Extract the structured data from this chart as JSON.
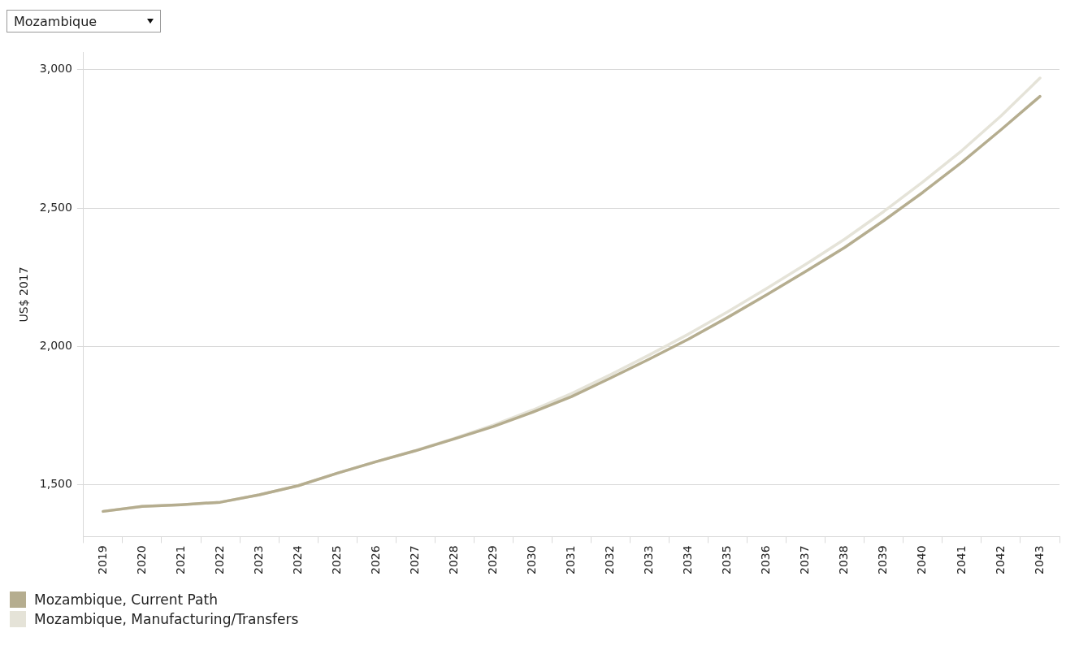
{
  "chart_data": {
    "type": "line",
    "ylabel": "US$ 2017",
    "annotations": [
      "Mozambique"
    ],
    "categories": [
      "2019",
      "2020",
      "2021",
      "2022",
      "2023",
      "2024",
      "2025",
      "2026",
      "2027",
      "2028",
      "2029",
      "2030",
      "2031",
      "2032",
      "2033",
      "2034",
      "2035",
      "2036",
      "2037",
      "2038",
      "2039",
      "2040",
      "2041",
      "2042",
      "2043"
    ],
    "series": [
      {
        "name": "Mozambique, Current Path",
        "color": "#b5ad8f",
        "values": [
          1404,
          1422,
          1428,
          1437,
          1464,
          1497,
          1542,
          1584,
          1623,
          1666,
          1711,
          1762,
          1819,
          1886,
          1955,
          2027,
          2105,
          2187,
          2271,
          2358,
          2455,
          2557,
          2666,
          2783,
          2904
        ]
      },
      {
        "name": "Mozambique, Manufacturing/Transfers",
        "color": "#e5e3d8",
        "values": [
          1404,
          1422,
          1428,
          1437,
          1464,
          1497,
          1542,
          1584,
          1624,
          1668,
          1716,
          1770,
          1830,
          1898,
          1970,
          2045,
          2125,
          2210,
          2297,
          2388,
          2488,
          2595,
          2708,
          2833,
          2970
        ]
      }
    ],
    "ylim": [
      1313,
      3063
    ],
    "yticks": [
      {
        "value": 1500,
        "label": "1,500"
      },
      {
        "value": 2000,
        "label": "2,000"
      },
      {
        "value": 2500,
        "label": "2,500"
      },
      {
        "value": 3000,
        "label": "3,000"
      }
    ],
    "grid": "y",
    "legend": "bottom left",
    "marker": "none",
    "line_style": "solid"
  }
}
